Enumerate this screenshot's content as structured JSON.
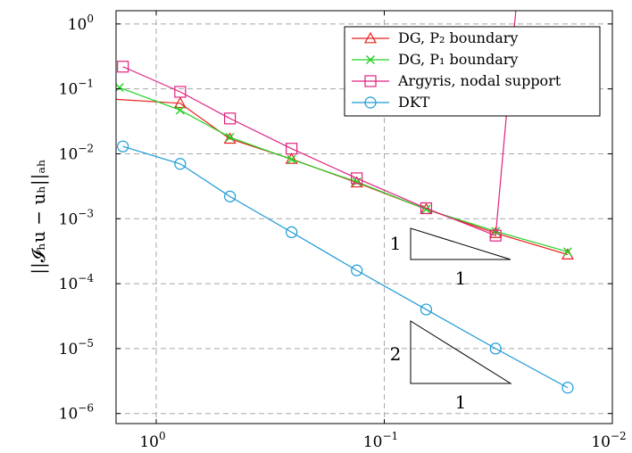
{
  "chart_data": {
    "type": "line",
    "title": "",
    "xlabel": "",
    "ylabel": "||𝓘ₕu − uₕ||ₐₕ",
    "x_scale": "log",
    "y_scale": "log",
    "x_reversed": true,
    "xlim": [
      1.5,
      0.01
    ],
    "ylim": [
      7e-07,
      1.6
    ],
    "x_ticks": [
      {
        "value": 1,
        "mantissa": "10",
        "exp": "0"
      },
      {
        "value": 0.1,
        "mantissa": "10",
        "exp": "−1"
      },
      {
        "value": 0.01,
        "mantissa": "10",
        "exp": "−2"
      }
    ],
    "y_ticks": [
      {
        "value": 1,
        "mantissa": "10",
        "exp": "0"
      },
      {
        "value": 0.1,
        "mantissa": "10",
        "exp": "−1"
      },
      {
        "value": 0.01,
        "mantissa": "10",
        "exp": "−2"
      },
      {
        "value": 0.001,
        "mantissa": "10",
        "exp": "−3"
      },
      {
        "value": 0.0001,
        "mantissa": "10",
        "exp": "−4"
      },
      {
        "value": 1e-05,
        "mantissa": "10",
        "exp": "−5"
      },
      {
        "value": 1e-06,
        "mantissa": "10",
        "exp": "−6"
      }
    ],
    "grid": true,
    "legend_position": "top-right",
    "series": [
      {
        "name": "DG, P₂ boundary",
        "color": "#e8221e",
        "marker": "triangle",
        "x": [
          1.59,
          0.785,
          0.475,
          0.255,
          0.132,
          0.0655,
          0.0325,
          0.0157
        ],
        "y": [
          0.07,
          0.06,
          0.017,
          0.0083,
          0.0036,
          0.0014,
          0.0006,
          0.00028
        ]
      },
      {
        "name": "DG, P₁ boundary",
        "color": "#22d022",
        "marker": "cross",
        "x": [
          1.45,
          0.785,
          0.475,
          0.255,
          0.132,
          0.0655,
          0.0325,
          0.0157
        ],
        "y": [
          0.105,
          0.047,
          0.018,
          0.0082,
          0.0037,
          0.0014,
          0.00064,
          0.00031
        ]
      },
      {
        "name": "Argyris, nodal support",
        "color": "#e0217e",
        "marker": "square",
        "x": [
          1.4,
          0.785,
          0.475,
          0.255,
          0.132,
          0.0655,
          0.0325,
          0.0265
        ],
        "y": [
          0.22,
          0.09,
          0.035,
          0.012,
          0.0042,
          0.00145,
          0.00055,
          1.6
        ]
      },
      {
        "name": "DKT",
        "color": "#1a9ad6",
        "marker": "circle",
        "x": [
          1.4,
          0.785,
          0.475,
          0.255,
          0.132,
          0.0655,
          0.0325,
          0.0157
        ],
        "y": [
          0.013,
          0.007,
          0.0022,
          0.00062,
          0.00016,
          4e-05,
          1e-05,
          2.5e-06
        ]
      }
    ],
    "slope_triangles": [
      {
        "vertical_label": "1",
        "horizontal_label": "1"
      },
      {
        "vertical_label": "2",
        "horizontal_label": "1"
      }
    ]
  }
}
